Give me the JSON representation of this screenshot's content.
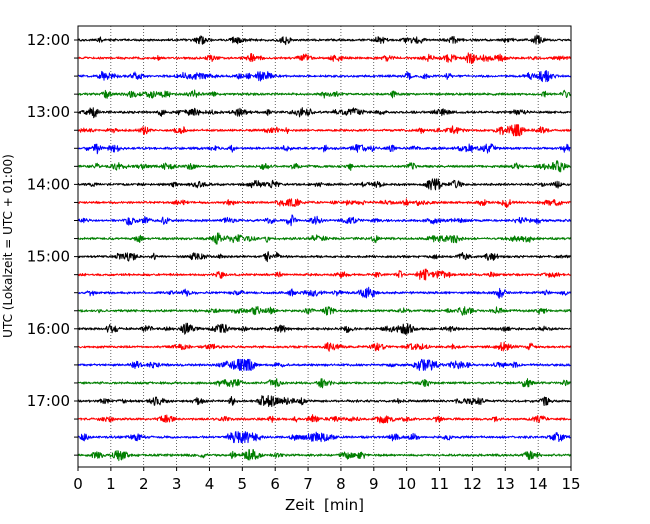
{
  "chart_data": {
    "type": "line",
    "chart_kind": "helicorder (seismogram drum plot)",
    "xlabel": "Zeit  [min]",
    "ylabel": "UTC (Lokalzeit = UTC + 01:00)",
    "xlim": [
      0,
      15
    ],
    "x_ticks": [
      0,
      1,
      2,
      3,
      4,
      5,
      6,
      7,
      8,
      9,
      10,
      11,
      12,
      13,
      14,
      15
    ],
    "x_tick_labels": [
      "0",
      "1",
      "2",
      "3",
      "4",
      "5",
      "6",
      "7",
      "8",
      "9",
      "10",
      "11",
      "12",
      "13",
      "14",
      "15"
    ],
    "y_tick_labels": [
      "12:00",
      "13:00",
      "14:00",
      "15:00",
      "16:00",
      "17:00"
    ],
    "trace_minutes": 15,
    "trace_count": 24,
    "traces_per_hour": 4,
    "trace_start_times": [
      "12:00",
      "12:15",
      "12:30",
      "12:45",
      "13:00",
      "13:15",
      "13:30",
      "13:45",
      "14:00",
      "14:15",
      "14:30",
      "14:45",
      "15:00",
      "15:15",
      "15:30",
      "15:45",
      "16:00",
      "16:15",
      "16:30",
      "16:45",
      "17:00",
      "17:15",
      "17:30",
      "17:45"
    ],
    "trace_colors": [
      "#000000",
      "#ff0000",
      "#0000ff",
      "#007f00"
    ],
    "vertical_grid": "dotted, every 1 min",
    "horizontal_grid": false,
    "legend": "none"
  }
}
